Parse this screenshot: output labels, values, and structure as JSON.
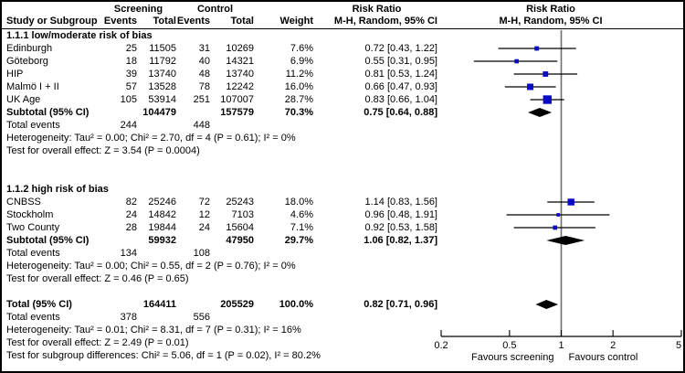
{
  "header": {
    "study_col": "Study or Subgroup",
    "screening_group": "Screening",
    "control_group": "Control",
    "events_col": "Events",
    "total_col": "Total",
    "events2_col": "Events",
    "total2_col": "Total",
    "weight_col": "Weight",
    "rr_col_title": "Risk Ratio",
    "rr_col_sub": "M-H, Random, 95% CI",
    "plot_title": "Risk Ratio",
    "plot_sub": "M-H, Random, 95% CI"
  },
  "axis": {
    "min": 0.2,
    "max": 5,
    "tick_values": [
      0.2,
      0.5,
      1,
      2,
      5
    ],
    "tick_labels": [
      "0.2",
      "0.5",
      "1",
      "2",
      "5"
    ],
    "favours_left": "Favours screening",
    "favours_right": "Favours control"
  },
  "colors": {
    "marker": "#0b0bc6",
    "diamond": "#000000",
    "ci_line": "#000000",
    "null_line": "#6e6e6e",
    "axis": "#000000",
    "border": "#000000",
    "background": "#ffffff"
  },
  "rows": [
    {
      "type": "section",
      "label": "1.1.1 low/moderate risk of bias"
    },
    {
      "type": "study",
      "label": "Edinburgh",
      "e1": "25",
      "t1": "11505",
      "e2": "31",
      "t2": "10269",
      "w": "7.6%",
      "rr_text": "0.72 [0.43, 1.22]",
      "rr": 0.72,
      "lo": 0.43,
      "hi": 1.22,
      "weight": 7.6
    },
    {
      "type": "study",
      "label": "Göteborg",
      "e1": "18",
      "t1": "11792",
      "e2": "40",
      "t2": "14321",
      "w": "6.9%",
      "rr_text": "0.55 [0.31, 0.95]",
      "rr": 0.55,
      "lo": 0.31,
      "hi": 0.95,
      "weight": 6.9
    },
    {
      "type": "study",
      "label": "HIP",
      "e1": "39",
      "t1": "13740",
      "e2": "48",
      "t2": "13740",
      "w": "11.2%",
      "rr_text": "0.81 [0.53, 1.24]",
      "rr": 0.81,
      "lo": 0.53,
      "hi": 1.24,
      "weight": 11.2
    },
    {
      "type": "study",
      "label": "Malmö I + II",
      "e1": "57",
      "t1": "13528",
      "e2": "78",
      "t2": "12242",
      "w": "16.0%",
      "rr_text": "0.66 [0.47, 0.93]",
      "rr": 0.66,
      "lo": 0.47,
      "hi": 0.93,
      "weight": 16.0
    },
    {
      "type": "study",
      "label": "UK Age",
      "e1": "105",
      "t1": "53914",
      "e2": "251",
      "t2": "107007",
      "w": "28.7%",
      "rr_text": "0.83 [0.66, 1.04]",
      "rr": 0.83,
      "lo": 0.66,
      "hi": 1.04,
      "weight": 28.7
    },
    {
      "type": "subtotal",
      "label": "Subtotal (95% CI)",
      "e1": "",
      "t1": "104479",
      "e2": "",
      "t2": "157579",
      "w": "70.3%",
      "rr_text": "0.75 [0.64, 0.88]",
      "rr": 0.75,
      "lo": 0.64,
      "hi": 0.88
    },
    {
      "type": "events",
      "label": "Total events",
      "e1": "244",
      "t1": "",
      "e2": "448",
      "t2": "",
      "w": "",
      "rr_text": ""
    },
    {
      "type": "note",
      "label": "Heterogeneity: Tau² = 0.00; Chi² = 2.70, df = 4 (P = 0.61); I² = 0%"
    },
    {
      "type": "note",
      "label": "Test for overall effect: Z = 3.54 (P = 0.0004)"
    },
    {
      "type": "spacer"
    },
    {
      "type": "spacer"
    },
    {
      "type": "section",
      "label": "1.1.2 high risk of bias"
    },
    {
      "type": "study",
      "label": "CNBSS",
      "e1": "82",
      "t1": "25246",
      "e2": "72",
      "t2": "25243",
      "w": "18.0%",
      "rr_text": "1.14 [0.83, 1.56]",
      "rr": 1.14,
      "lo": 0.83,
      "hi": 1.56,
      "weight": 18.0
    },
    {
      "type": "study",
      "label": "Stockholm",
      "e1": "24",
      "t1": "14842",
      "e2": "12",
      "t2": "7103",
      "w": "4.6%",
      "rr_text": "0.96 [0.48, 1.91]",
      "rr": 0.96,
      "lo": 0.48,
      "hi": 1.91,
      "weight": 4.6
    },
    {
      "type": "study",
      "label": "Two County",
      "e1": "28",
      "t1": "19844",
      "e2": "24",
      "t2": "15604",
      "w": "7.1%",
      "rr_text": "0.92 [0.53, 1.58]",
      "rr": 0.92,
      "lo": 0.53,
      "hi": 1.58,
      "weight": 7.1
    },
    {
      "type": "subtotal",
      "label": "Subtotal (95% CI)",
      "e1": "",
      "t1": "59932",
      "e2": "",
      "t2": "47950",
      "w": "29.7%",
      "rr_text": "1.06 [0.82, 1.37]",
      "rr": 1.06,
      "lo": 0.82,
      "hi": 1.37
    },
    {
      "type": "events",
      "label": "Total events",
      "e1": "134",
      "t1": "",
      "e2": "108",
      "t2": "",
      "w": "",
      "rr_text": ""
    },
    {
      "type": "note",
      "label": "Heterogeneity: Tau² = 0.00; Chi² = 0.55, df = 2 (P = 0.76); I² = 0%"
    },
    {
      "type": "note",
      "label": "Test for overall effect: Z = 0.46 (P = 0.65)"
    },
    {
      "type": "spacer"
    },
    {
      "type": "total",
      "label": "Total (95% CI)",
      "e1": "",
      "t1": "164411",
      "e2": "",
      "t2": "205529",
      "w": "100.0%",
      "rr_text": "0.82 [0.71, 0.96]",
      "rr": 0.82,
      "lo": 0.71,
      "hi": 0.96
    },
    {
      "type": "events",
      "label": "Total events",
      "e1": "378",
      "t1": "",
      "e2": "556",
      "t2": "",
      "w": "",
      "rr_text": ""
    },
    {
      "type": "note",
      "label": "Heterogeneity: Tau² = 0.01; Chi² = 8.31, df = 7 (P = 0.31); I² = 16%"
    },
    {
      "type": "note",
      "label": "Test for overall effect: Z = 2.49 (P = 0.01)"
    },
    {
      "type": "note",
      "label": "Test for subgroup differences: Chi² = 5.06, df = 1 (P = 0.02), I² = 80.2%"
    }
  ],
  "chart_data": {
    "type": "scatter",
    "subtype": "forest-plot",
    "title": "Risk Ratio",
    "subtitle": "M-H, Random, 95% CI",
    "x_scale": "log",
    "xlim": [
      0.2,
      5
    ],
    "x_ticks": [
      0.2,
      0.5,
      1,
      2,
      5
    ],
    "null_line": 1,
    "xlabel_left": "Favours screening",
    "xlabel_right": "Favours control",
    "groups": [
      {
        "name": "1.1.1 low/moderate risk of bias",
        "studies": [
          {
            "study": "Edinburgh",
            "screening_events": 25,
            "screening_total": 11505,
            "control_events": 31,
            "control_total": 10269,
            "weight_pct": 7.6,
            "rr": 0.72,
            "ci": [
              0.43,
              1.22
            ]
          },
          {
            "study": "Göteborg",
            "screening_events": 18,
            "screening_total": 11792,
            "control_events": 40,
            "control_total": 14321,
            "weight_pct": 6.9,
            "rr": 0.55,
            "ci": [
              0.31,
              0.95
            ]
          },
          {
            "study": "HIP",
            "screening_events": 39,
            "screening_total": 13740,
            "control_events": 48,
            "control_total": 13740,
            "weight_pct": 11.2,
            "rr": 0.81,
            "ci": [
              0.53,
              1.24
            ]
          },
          {
            "study": "Malmö I + II",
            "screening_events": 57,
            "screening_total": 13528,
            "control_events": 78,
            "control_total": 12242,
            "weight_pct": 16.0,
            "rr": 0.66,
            "ci": [
              0.47,
              0.93
            ]
          },
          {
            "study": "UK Age",
            "screening_events": 105,
            "screening_total": 53914,
            "control_events": 251,
            "control_total": 107007,
            "weight_pct": 28.7,
            "rr": 0.83,
            "ci": [
              0.66,
              1.04
            ]
          }
        ],
        "subtotal": {
          "screening_total": 104479,
          "control_total": 157579,
          "weight_pct": 70.3,
          "rr": 0.75,
          "ci": [
            0.64,
            0.88
          ],
          "total_events_screening": 244,
          "total_events_control": 448,
          "heterogeneity": "Tau² = 0.00; Chi² = 2.70, df = 4 (P = 0.61); I² = 0%",
          "overall_effect": "Z = 3.54 (P = 0.0004)"
        }
      },
      {
        "name": "1.1.2 high risk of bias",
        "studies": [
          {
            "study": "CNBSS",
            "screening_events": 82,
            "screening_total": 25246,
            "control_events": 72,
            "control_total": 25243,
            "weight_pct": 18.0,
            "rr": 1.14,
            "ci": [
              0.83,
              1.56
            ]
          },
          {
            "study": "Stockholm",
            "screening_events": 24,
            "screening_total": 14842,
            "control_events": 12,
            "control_total": 7103,
            "weight_pct": 4.6,
            "rr": 0.96,
            "ci": [
              0.48,
              1.91
            ]
          },
          {
            "study": "Two County",
            "screening_events": 28,
            "screening_total": 19844,
            "control_events": 24,
            "control_total": 15604,
            "weight_pct": 7.1,
            "rr": 0.92,
            "ci": [
              0.53,
              1.58
            ]
          }
        ],
        "subtotal": {
          "screening_total": 59932,
          "control_total": 47950,
          "weight_pct": 29.7,
          "rr": 1.06,
          "ci": [
            0.82,
            1.37
          ],
          "total_events_screening": 134,
          "total_events_control": 108,
          "heterogeneity": "Tau² = 0.00; Chi² = 0.55, df = 2 (P = 0.76); I² = 0%",
          "overall_effect": "Z = 0.46 (P = 0.65)"
        }
      }
    ],
    "total": {
      "screening_total": 164411,
      "control_total": 205529,
      "weight_pct": 100.0,
      "rr": 0.82,
      "ci": [
        0.71,
        0.96
      ],
      "total_events_screening": 378,
      "total_events_control": 556,
      "heterogeneity": "Tau² = 0.01; Chi² = 8.31, df = 7 (P = 0.31); I² = 16%",
      "overall_effect": "Z = 2.49 (P = 0.01)",
      "subgroup_differences": "Chi² = 5.06, df = 1 (P = 0.02), I² = 80.2%"
    }
  }
}
